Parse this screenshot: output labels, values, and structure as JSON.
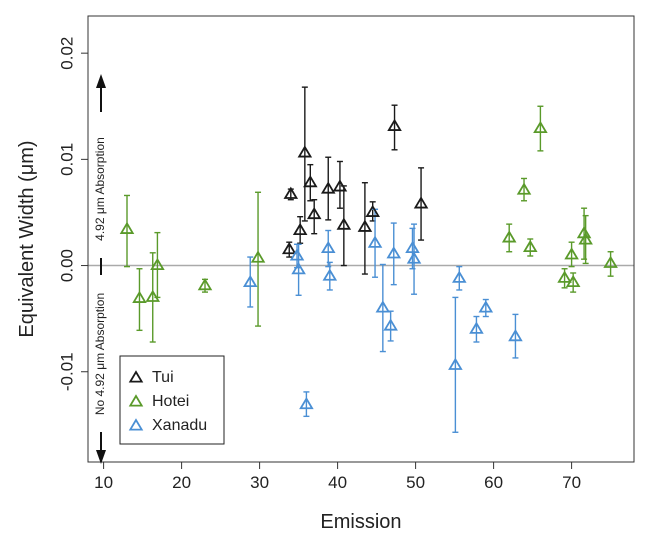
{
  "chart_data": {
    "type": "scatter",
    "title": "",
    "xlabel": "Emission",
    "ylabel_text": "Equivalent Width (",
    "ylabel_unit": "μm",
    "ylabel_close": ")",
    "xlim": [
      8,
      78
    ],
    "ylim": [
      -0.0185,
      0.0235
    ],
    "xticks": [
      10,
      20,
      30,
      40,
      50,
      60,
      70
    ],
    "xtick_labels": [
      "10",
      "20",
      "30",
      "40",
      "50",
      "60",
      "70"
    ],
    "yticks": [
      -0.01,
      0,
      0.01,
      0.02
    ],
    "ytick_labels": [
      "-0.01",
      "0.00",
      "0.01",
      "0.02"
    ],
    "reference_line_y": 0,
    "annotation_up": "4.92 μm Absorption",
    "annotation_down": "No 4.92 μm Absorption",
    "legend_position": "bottom-left",
    "series": [
      {
        "name": "Tui",
        "color": "#1a1a1a",
        "points": [
          {
            "x": 33.8,
            "y": 0.0015,
            "lo": 0.0008,
            "hi": 0.0022
          },
          {
            "x": 34.0,
            "y": 0.0067,
            "lo": 0.0062,
            "hi": 0.0072
          },
          {
            "x": 35.2,
            "y": 0.0033,
            "lo": 0.0021,
            "hi": 0.0046
          },
          {
            "x": 35.8,
            "y": 0.0106,
            "lo": 0.0042,
            "hi": 0.0168
          },
          {
            "x": 36.5,
            "y": 0.0078,
            "lo": 0.0061,
            "hi": 0.0095
          },
          {
            "x": 37.0,
            "y": 0.0048,
            "lo": 0.003,
            "hi": 0.0062
          },
          {
            "x": 38.8,
            "y": 0.0072,
            "lo": 0.0043,
            "hi": 0.0102
          },
          {
            "x": 40.3,
            "y": 0.0074,
            "lo": 0.0054,
            "hi": 0.0098
          },
          {
            "x": 40.8,
            "y": 0.0038,
            "lo": 0.0,
            "hi": 0.0075
          },
          {
            "x": 43.5,
            "y": 0.0036,
            "lo": -0.0008,
            "hi": 0.0078
          },
          {
            "x": 44.5,
            "y": 0.005,
            "lo": 0.0042,
            "hi": 0.006
          },
          {
            "x": 47.3,
            "y": 0.0131,
            "lo": 0.0109,
            "hi": 0.0151
          },
          {
            "x": 50.7,
            "y": 0.0058,
            "lo": 0.0024,
            "hi": 0.0092
          }
        ]
      },
      {
        "name": "Hotei",
        "color": "#5a9a2a",
        "points": [
          {
            "x": 13.0,
            "y": 0.0034,
            "lo": -0.0001,
            "hi": 0.0066
          },
          {
            "x": 14.6,
            "y": -0.0031,
            "lo": -0.0061,
            "hi": -0.0003
          },
          {
            "x": 16.3,
            "y": -0.003,
            "lo": -0.0072,
            "hi": 0.0012
          },
          {
            "x": 16.9,
            "y": 0.0,
            "lo": -0.003,
            "hi": 0.0031
          },
          {
            "x": 23.0,
            "y": -0.0019,
            "lo": -0.0025,
            "hi": -0.0013
          },
          {
            "x": 29.8,
            "y": 0.0007,
            "lo": -0.0057,
            "hi": 0.0069
          },
          {
            "x": 62.0,
            "y": 0.0026,
            "lo": 0.0013,
            "hi": 0.0039
          },
          {
            "x": 63.9,
            "y": 0.0071,
            "lo": 0.0061,
            "hi": 0.0082
          },
          {
            "x": 64.7,
            "y": 0.0017,
            "lo": 0.0009,
            "hi": 0.0025
          },
          {
            "x": 66.0,
            "y": 0.0129,
            "lo": 0.0108,
            "hi": 0.015
          },
          {
            "x": 69.1,
            "y": -0.0012,
            "lo": -0.0021,
            "hi": -0.0003
          },
          {
            "x": 70.0,
            "y": 0.001,
            "lo": -0.0001,
            "hi": 0.0022
          },
          {
            "x": 70.2,
            "y": -0.0016,
            "lo": -0.0025,
            "hi": -0.0007
          },
          {
            "x": 71.6,
            "y": 0.003,
            "lo": 0.0006,
            "hi": 0.0054
          },
          {
            "x": 71.8,
            "y": 0.0024,
            "lo": 0.0002,
            "hi": 0.0047
          },
          {
            "x": 75.0,
            "y": 0.0002,
            "lo": -0.001,
            "hi": 0.0013
          }
        ]
      },
      {
        "name": "Xanadu",
        "color": "#4a8fd4",
        "points": [
          {
            "x": 28.8,
            "y": -0.0016,
            "lo": -0.0039,
            "hi": 0.0008
          },
          {
            "x": 34.8,
            "y": 0.0009,
            "lo": -0.0002,
            "hi": 0.002
          },
          {
            "x": 35.0,
            "y": -0.0004,
            "lo": -0.0028,
            "hi": 0.002
          },
          {
            "x": 36.0,
            "y": -0.0131,
            "lo": -0.0142,
            "hi": -0.0119
          },
          {
            "x": 38.8,
            "y": 0.0016,
            "lo": -0.0001,
            "hi": 0.0033
          },
          {
            "x": 39.0,
            "y": -0.001,
            "lo": -0.0023,
            "hi": 0.0003
          },
          {
            "x": 44.8,
            "y": 0.0021,
            "lo": -0.0011,
            "hi": 0.0053
          },
          {
            "x": 45.8,
            "y": -0.004,
            "lo": -0.0081,
            "hi": 0.0001
          },
          {
            "x": 46.8,
            "y": -0.0057,
            "lo": -0.0071,
            "hi": -0.0043
          },
          {
            "x": 47.2,
            "y": 0.0011,
            "lo": -0.0018,
            "hi": 0.004
          },
          {
            "x": 49.6,
            "y": 0.0016,
            "lo": -0.0003,
            "hi": 0.0035
          },
          {
            "x": 49.8,
            "y": 0.0006,
            "lo": -0.0027,
            "hi": 0.0039
          },
          {
            "x": 55.1,
            "y": -0.0094,
            "lo": -0.0157,
            "hi": -0.003
          },
          {
            "x": 55.6,
            "y": -0.0012,
            "lo": -0.0023,
            "hi": -0.0001
          },
          {
            "x": 57.8,
            "y": -0.006,
            "lo": -0.0072,
            "hi": -0.0048
          },
          {
            "x": 59.0,
            "y": -0.004,
            "lo": -0.0048,
            "hi": -0.0032
          },
          {
            "x": 62.8,
            "y": -0.0067,
            "lo": -0.0087,
            "hi": -0.0046
          }
        ]
      }
    ]
  }
}
